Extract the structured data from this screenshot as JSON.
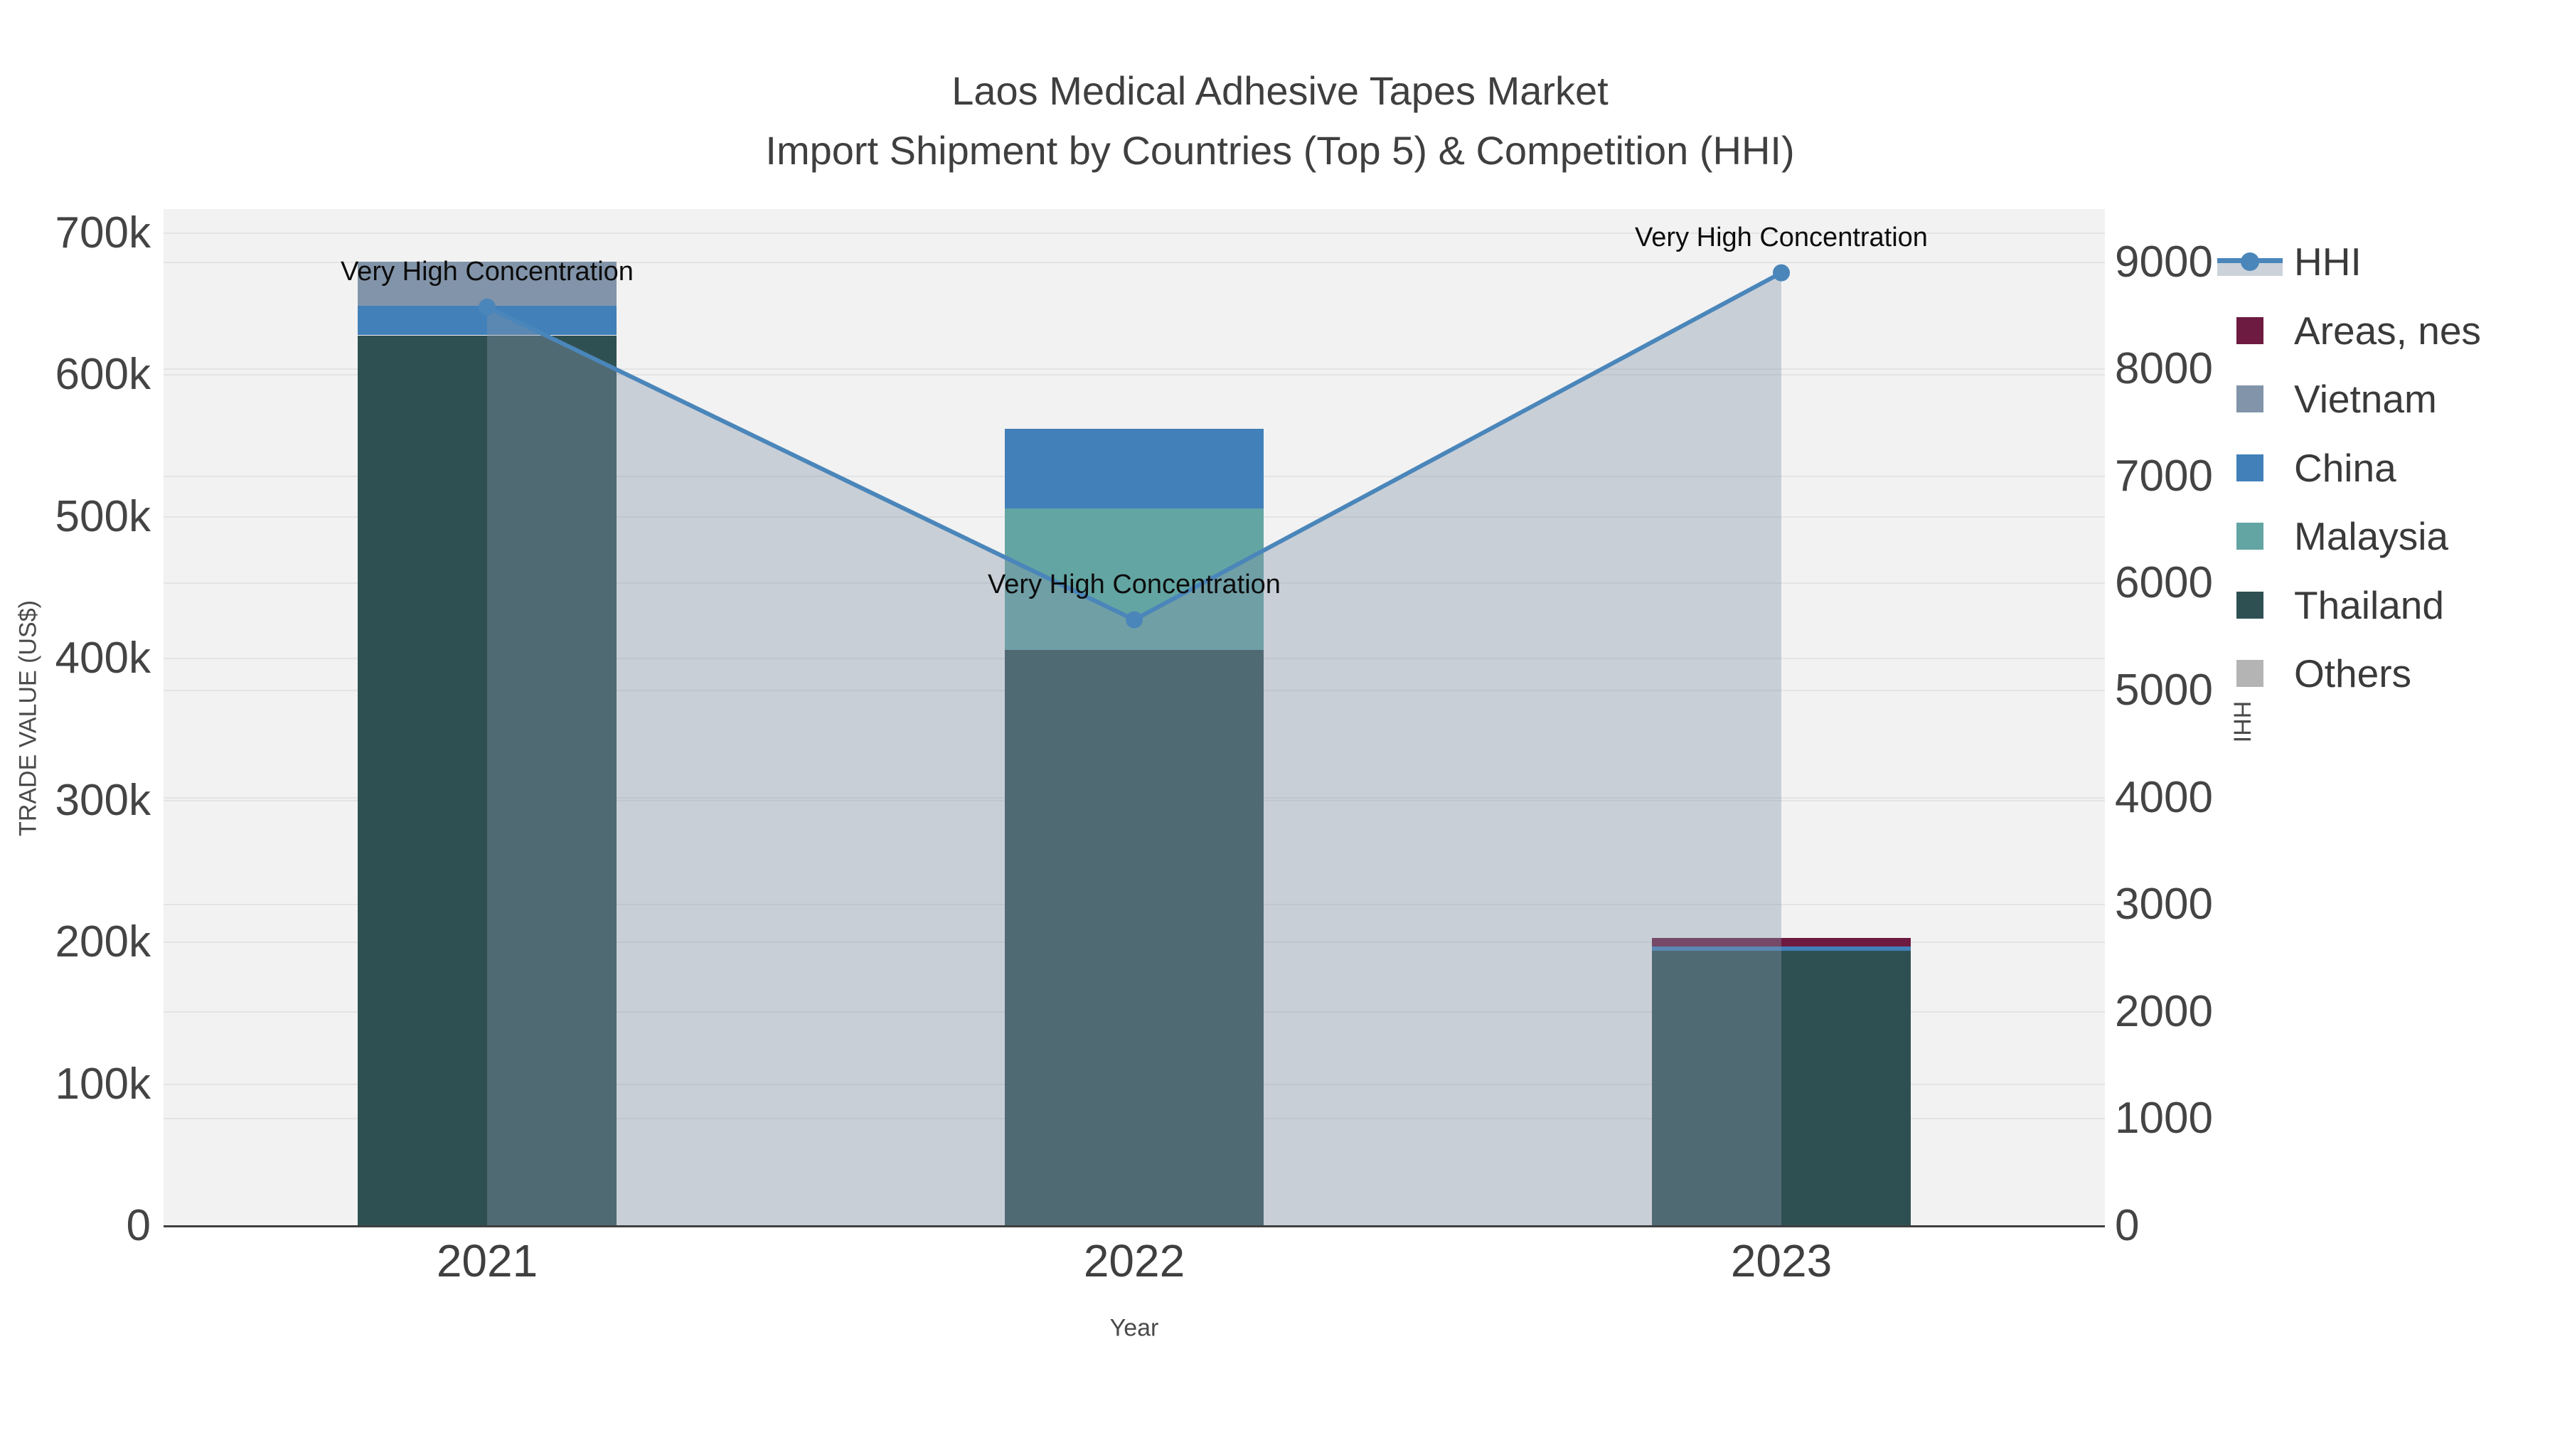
{
  "figure": {
    "title_line1": "Laos Medical Adhesive Tapes Market",
    "title_line2": "Import Shipment by Countries (Top 5) & Competition (HHI)"
  },
  "chart_data": {
    "type": "bar",
    "subtype": "stacked-bars-with-line",
    "categories": [
      "2021",
      "2022",
      "2023"
    ],
    "xlabel": "Year",
    "ylabel": "TRADE VALUE (US$)",
    "y2label": "HHI",
    "ylim": [
      0,
      717000
    ],
    "y2lim": [
      0,
      9495
    ],
    "grid": true,
    "plot_bg": "#f2f2f2",
    "yticks": [
      {
        "value": 0,
        "label": "0"
      },
      {
        "value": 100000,
        "label": "100k"
      },
      {
        "value": 200000,
        "label": "200k"
      },
      {
        "value": 300000,
        "label": "300k"
      },
      {
        "value": 400000,
        "label": "400k"
      },
      {
        "value": 500000,
        "label": "500k"
      },
      {
        "value": 600000,
        "label": "600k"
      },
      {
        "value": 700000,
        "label": "700k"
      }
    ],
    "y2ticks": [
      {
        "value": 0,
        "label": "0"
      },
      {
        "value": 1000,
        "label": "1000"
      },
      {
        "value": 2000,
        "label": "2000"
      },
      {
        "value": 3000,
        "label": "3000"
      },
      {
        "value": 4000,
        "label": "4000"
      },
      {
        "value": 5000,
        "label": "5000"
      },
      {
        "value": 6000,
        "label": "6000"
      },
      {
        "value": 7000,
        "label": "7000"
      },
      {
        "value": 8000,
        "label": "8000"
      },
      {
        "value": 9000,
        "label": "9000"
      }
    ],
    "stack_order": [
      "Thailand",
      "Malaysia",
      "China",
      "Vietnam",
      "Areas, nes",
      "Others"
    ],
    "series": [
      {
        "name": "Areas, nes",
        "color": "#6d1b40",
        "values": [
          0,
          0,
          6000
        ]
      },
      {
        "name": "Vietnam",
        "color": "#8294a9",
        "values": [
          31000,
          0,
          0
        ]
      },
      {
        "name": "China",
        "color": "#4180b9",
        "values": [
          21000,
          56000,
          3000
        ]
      },
      {
        "name": "Malaysia",
        "color": "#63a5a3",
        "values": [
          0,
          100000,
          0
        ]
      },
      {
        "name": "Thailand",
        "color": "#2f5053",
        "values": [
          628000,
          406000,
          194000
        ]
      },
      {
        "name": "Others",
        "color": "#b4b4b4",
        "values": [
          0,
          0,
          0
        ]
      }
    ],
    "line_series": {
      "name": "HHI",
      "color": "#4a86ba",
      "area_fill": "rgba(134,150,172,0.38)",
      "values": [
        8580,
        5660,
        8900
      ]
    },
    "annotations": [
      {
        "x": "2021",
        "text": "Very High Concentration"
      },
      {
        "x": "2022",
        "text": "Very High Concentration"
      },
      {
        "x": "2023",
        "text": "Very High Concentration"
      }
    ],
    "legend": {
      "items": [
        {
          "label": "HHI",
          "type": "line",
          "color": "#4a86ba"
        },
        {
          "label": "Areas, nes",
          "type": "square",
          "color": "#6d1b40"
        },
        {
          "label": "Vietnam",
          "type": "square",
          "color": "#8294a9"
        },
        {
          "label": "China",
          "type": "square",
          "color": "#4180b9"
        },
        {
          "label": "Malaysia",
          "type": "square",
          "color": "#63a5a3"
        },
        {
          "label": "Thailand",
          "type": "square",
          "color": "#2f5053"
        },
        {
          "label": "Others",
          "type": "square",
          "color": "#b4b4b4"
        }
      ]
    }
  }
}
